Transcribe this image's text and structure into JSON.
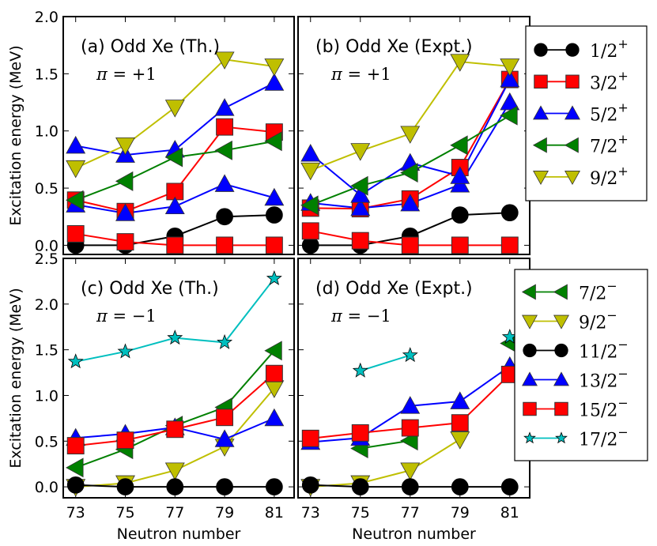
{
  "chart_data": [
    {
      "id": "a",
      "type": "line",
      "title": "(a) Odd Xe (Th.)",
      "annotation": {
        "pi": "π",
        "eq": " = ",
        "value": "+1"
      },
      "xlabel": "",
      "ylabel": "Excitation energy (MeV)",
      "x": [
        73,
        75,
        77,
        79,
        81
      ],
      "xlim": [
        72.5,
        81.8
      ],
      "ylim": [
        -0.08,
        2.0
      ],
      "yticks": [
        "0.0",
        "0.5",
        "1.0",
        "1.5",
        "2.0"
      ],
      "ytick_values": [
        0,
        0.5,
        1.0,
        1.5,
        2.0
      ],
      "xticks_shown": false,
      "series": [
        {
          "name": "1/2+",
          "style": "s12",
          "values": [
            0,
            0,
            0.08,
            0.25,
            0.265
          ]
        },
        {
          "name": "3/2+",
          "style": "s32",
          "values": [
            0.1,
            0.03,
            0,
            0,
            0
          ]
        },
        {
          "name": "3/2+",
          "style": "s32",
          "values": [
            0.395,
            0.295,
            0.47,
            1.035,
            0.99
          ]
        },
        {
          "name": "5/2+",
          "style": "s52",
          "values": [
            0.355,
            0.28,
            0.34,
            0.535,
            0.415
          ]
        },
        {
          "name": "5/2+",
          "style": "s52",
          "values": [
            0.87,
            0.79,
            0.835,
            1.2,
            1.42
          ]
        },
        {
          "name": "7/2+",
          "style": "s72",
          "values": [
            0.395,
            0.56,
            0.77,
            0.83,
            0.91
          ]
        },
        {
          "name": "9/2+",
          "style": "s92",
          "values": [
            0.675,
            0.875,
            1.205,
            1.625,
            1.565
          ]
        }
      ]
    },
    {
      "id": "b",
      "type": "line",
      "title": "(b) Odd Xe (Expt.)",
      "annotation": {
        "pi": "π",
        "eq": " = ",
        "value": "+1"
      },
      "xlabel": "",
      "ylabel": "",
      "x": [
        73,
        75,
        77,
        79,
        81
      ],
      "xlim": [
        72.5,
        81.8
      ],
      "ylim": [
        -0.08,
        2.0
      ],
      "xticks_shown": false,
      "series": [
        {
          "name": "1/2+",
          "style": "s12",
          "values": [
            0,
            0,
            0.08,
            0.265,
            0.285
          ]
        },
        {
          "name": "3/2+",
          "style": "s32",
          "values": [
            0.125,
            0.04,
            0,
            0,
            0
          ]
        },
        {
          "name": "3/2+",
          "style": "s32",
          "values": [
            0.325,
            0.32,
            0.405,
            0.68,
            1.45
          ]
        },
        {
          "name": "5/2+",
          "style": "s52",
          "values": [
            0.37,
            0.325,
            0.365,
            0.53,
            1.25
          ]
        },
        {
          "name": "5/2+",
          "style": "s52",
          "values": [
            0.8,
            0.44,
            0.72,
            0.605,
            1.45
          ]
        },
        {
          "name": "7/2+",
          "style": "s72",
          "values": [
            0.35,
            0.52,
            0.635,
            0.875,
            1.135
          ]
        },
        {
          "name": "9/2+",
          "style": "s92",
          "values": [
            0.655,
            0.825,
            0.975,
            1.605,
            1.565
          ]
        }
      ],
      "legend": {
        "placement": "outside-right",
        "entries": [
          {
            "style": "s12",
            "num": "1/2",
            "sup": "+"
          },
          {
            "style": "s32",
            "num": "3/2",
            "sup": "+"
          },
          {
            "style": "s52",
            "num": "5/2",
            "sup": "+"
          },
          {
            "style": "s72",
            "num": "7/2",
            "sup": "+"
          },
          {
            "style": "s92",
            "num": "9/2",
            "sup": "+"
          }
        ]
      }
    },
    {
      "id": "c",
      "type": "line",
      "title": "(c) Odd Xe (Th.)",
      "annotation": {
        "pi": "π",
        "eq": " = ",
        "value": "−1"
      },
      "xlabel": "Neutron number",
      "ylabel": "Excitation energy (MeV)",
      "x": [
        73,
        75,
        77,
        79,
        81
      ],
      "xlim": [
        72.5,
        81.8
      ],
      "ylim": [
        -0.12,
        2.5
      ],
      "xticks": [
        "73",
        "75",
        "77",
        "79",
        "81"
      ],
      "yticks": [
        "0.0",
        "0.5",
        "1.0",
        "1.5",
        "2.0",
        "2.5"
      ],
      "ytick_values": [
        0,
        0.5,
        1.0,
        1.5,
        2.0,
        2.5
      ],
      "series": [
        {
          "name": "7/2-",
          "style": "s72",
          "values": [
            0.21,
            0.41,
            0.67,
            0.87,
            1.49
          ]
        },
        {
          "name": "9/2-",
          "style": "s92",
          "values": [
            0.0,
            0.04,
            0.18,
            0.44,
            1.08
          ]
        },
        {
          "name": "11/2-",
          "style": "s12",
          "values": [
            0.02,
            0,
            0,
            0,
            0
          ]
        },
        {
          "name": "13/2-",
          "style": "s52",
          "values": [
            0.535,
            0.58,
            0.65,
            0.52,
            0.75
          ]
        },
        {
          "name": "15/2-",
          "style": "s32",
          "values": [
            0.45,
            0.51,
            0.63,
            0.76,
            1.24
          ]
        },
        {
          "name": "17/2-",
          "style": "s172",
          "values": [
            1.37,
            1.48,
            1.63,
            1.58,
            2.28
          ]
        }
      ]
    },
    {
      "id": "d",
      "type": "line",
      "title": "(d) Odd Xe (Expt.)",
      "annotation": {
        "pi": "π",
        "eq": " = ",
        "value": "−1"
      },
      "xlabel": "Neutron number",
      "ylabel": "",
      "x": [
        73,
        75,
        77,
        79,
        81
      ],
      "xlim": [
        72.5,
        81.8
      ],
      "ylim": [
        -0.12,
        2.5
      ],
      "xticks": [
        "73",
        "75",
        "77",
        "79",
        "81"
      ],
      "series": [
        {
          "name": "7/2-",
          "style": "s72",
          "values": [
            null,
            0.42,
            0.505,
            null,
            1.57
          ]
        },
        {
          "name": "9/2-",
          "style": "s92",
          "values": [
            0.0,
            0.04,
            0.18,
            0.52,
            null
          ]
        },
        {
          "name": "11/2-",
          "style": "s12",
          "values": [
            0.02,
            0,
            0,
            0,
            0
          ]
        },
        {
          "name": "13/2-",
          "style": "s52",
          "values": [
            0.49,
            0.535,
            0.885,
            0.935,
            1.32
          ]
        },
        {
          "name": "15/2-",
          "style": "s32",
          "values": [
            0.53,
            0.59,
            0.645,
            0.7,
            1.23
          ]
        },
        {
          "name": "17/2-",
          "style": "s172",
          "values": [
            null,
            1.27,
            1.44,
            null,
            1.64
          ]
        }
      ],
      "legend": {
        "placement": "outside-right",
        "entries": [
          {
            "style": "s72",
            "num": "7/2",
            "sup": "−"
          },
          {
            "style": "s92",
            "num": "9/2",
            "sup": "−"
          },
          {
            "style": "s12",
            "num": "11/2",
            "sup": "−"
          },
          {
            "style": "s52",
            "num": "13/2",
            "sup": "−"
          },
          {
            "style": "s32",
            "num": "15/2",
            "sup": "−"
          },
          {
            "style": "s172",
            "num": "17/2",
            "sup": "−"
          }
        ]
      }
    }
  ],
  "styles": {
    "s12": {
      "color": "#000000",
      "marker": "circle"
    },
    "s32": {
      "color": "#ff0000",
      "marker": "square"
    },
    "s52": {
      "color": "#0000ff",
      "marker": "triangle-up"
    },
    "s72": {
      "color": "#008000",
      "marker": "triangle-left"
    },
    "s92": {
      "color": "#bfbf00",
      "marker": "triangle-down"
    },
    "s172": {
      "color": "#00bfbf",
      "marker": "star"
    }
  }
}
